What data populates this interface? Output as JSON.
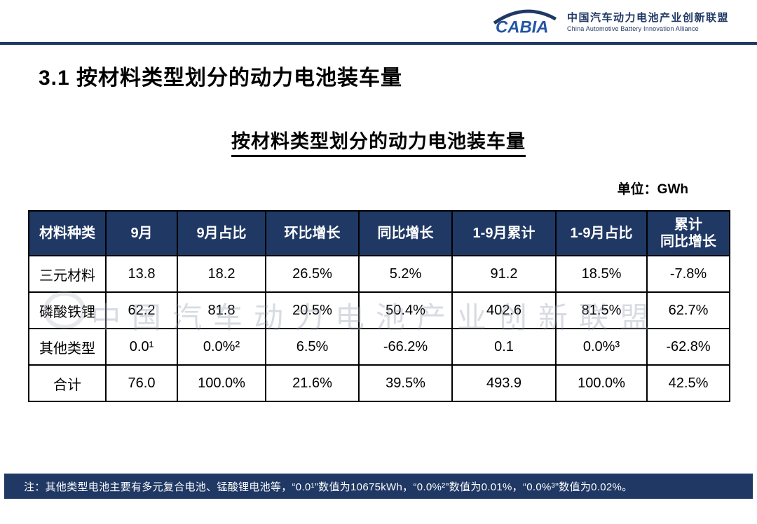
{
  "header": {
    "logo_text": "CABIA",
    "org_name_cn": "中国汽车动力电池产业创新联盟",
    "org_name_en": "China Automotive Battery Innovation Alliance"
  },
  "page_title": "3.1 按材料类型划分的动力电池装车量",
  "table_title": "按材料类型划分的动力电池装车量",
  "unit_label": "单位：GWh",
  "watermark_text": "中国汽车动力电池产业创新联盟",
  "table": {
    "headers": [
      "材料种类",
      "9月",
      "9月占比",
      "环比增长",
      "同比增长",
      "1-9月累计",
      "1-9月占比",
      "累计\n同比增长"
    ],
    "rows": [
      [
        "三元材料",
        "13.8",
        "18.2",
        "26.5%",
        "5.2%",
        "91.2",
        "18.5%",
        "-7.8%"
      ],
      [
        "磷酸铁锂",
        "62.2",
        "81.8",
        "20.5%",
        "50.4%",
        "402.6",
        "81.5%",
        "62.7%"
      ],
      [
        "其他类型",
        "0.0¹",
        "0.0%²",
        "6.5%",
        "-66.2%",
        "0.1",
        "0.0%³",
        "-62.8%"
      ],
      [
        "合计",
        "76.0",
        "100.0%",
        "21.6%",
        "39.5%",
        "493.9",
        "100.0%",
        "42.5%"
      ]
    ]
  },
  "footer_note": "注：其他类型电池主要有多元复合电池、锰酸锂电池等，“0.0¹”数值为10675kWh，“0.0%²”数值为0.01%，“0.0%³”数值为0.02%。",
  "colors": {
    "navy": "#1F3864",
    "logo_blue": "#2456A4",
    "watermark_gray": "#9aa2b5"
  }
}
